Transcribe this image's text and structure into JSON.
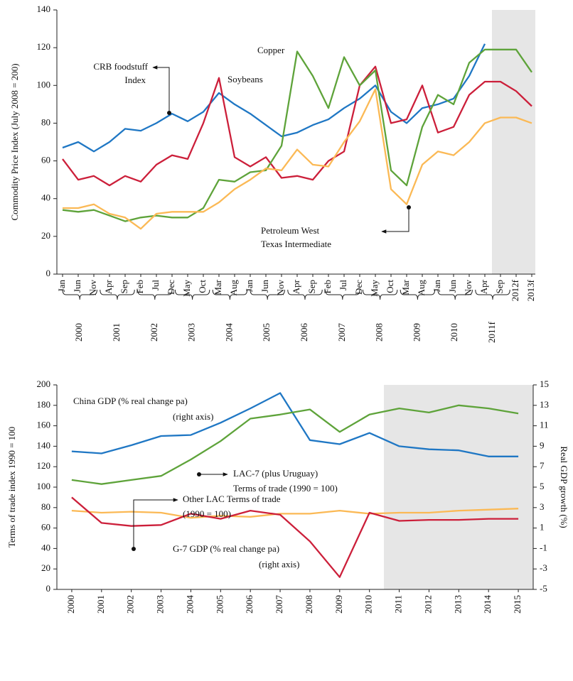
{
  "chart_data": [
    {
      "type": "line",
      "ylabel": "Commodity Price Index (July 2008 = 200)",
      "categories": [
        "Jan",
        "Jun",
        "Nov",
        "Apr",
        "Sep",
        "Feb",
        "Jul",
        "Dec",
        "May",
        "Oct",
        "Mar",
        "Aug",
        "Jan",
        "Jun",
        "Nov",
        "Apr",
        "Sep",
        "Feb",
        "Jul",
        "Dec",
        "May",
        "Oct",
        "Mar",
        "Aug",
        "Jan",
        "Jun",
        "Nov",
        "Apr",
        "Sep",
        "2012f",
        "2013f"
      ],
      "year_groups": [
        "2000",
        "2001",
        "2002",
        "2003",
        "2004",
        "2005",
        "2006",
        "2007",
        "2008",
        "2009",
        "2010",
        "2011f"
      ],
      "ylim": [
        0,
        140
      ],
      "yticks": [
        0,
        20,
        40,
        60,
        80,
        100,
        120,
        140
      ],
      "series": [
        {
          "name": "CRB foodstuff Index",
          "color": "#1f77c4",
          "values": [
            67,
            70,
            65,
            70,
            77,
            76,
            80,
            85,
            81,
            86,
            96,
            90,
            85,
            79,
            73,
            75,
            79,
            82,
            88,
            93,
            100,
            86,
            80,
            88,
            90,
            93,
            105,
            122,
            null,
            null,
            null
          ]
        },
        {
          "name": "Soybeans",
          "color": "#cc1f3a",
          "values": [
            61,
            50,
            52,
            47,
            52,
            49,
            58,
            63,
            61,
            80,
            104,
            62,
            57,
            62,
            51,
            52,
            50,
            60,
            65,
            100,
            110,
            80,
            82,
            100,
            75,
            78,
            95,
            102,
            102,
            97,
            89
          ]
        },
        {
          "name": "Copper",
          "color": "#5ea33a",
          "values": [
            34,
            33,
            34,
            31,
            28,
            30,
            31,
            30,
            30,
            35,
            50,
            49,
            54,
            55,
            68,
            118,
            105,
            88,
            115,
            100,
            108,
            55,
            47,
            78,
            95,
            90,
            112,
            119,
            119,
            119,
            107
          ]
        },
        {
          "name": "Petroleum West Texas Intermediate",
          "color": "#fbb955",
          "values": [
            35,
            35,
            37,
            32,
            30,
            24,
            32,
            33,
            33,
            33,
            38,
            45,
            50,
            56,
            55,
            66,
            58,
            57,
            70,
            81,
            98,
            45,
            37,
            58,
            65,
            63,
            70,
            80,
            83,
            83,
            80
          ]
        }
      ],
      "annotations": [
        [
          "Copper"
        ],
        [
          "Soybeans"
        ],
        [
          "CRB foodstuff",
          "Index"
        ],
        [
          "Petroleum West",
          "Texas Intermediate"
        ]
      ]
    },
    {
      "type": "line",
      "ylabel": "Terms of trade index 1990 = 100",
      "y2label": "Real GDP growth (%)",
      "categories": [
        "2000",
        "2001",
        "2002",
        "2003",
        "2004",
        "2005",
        "2006",
        "2007",
        "2008",
        "2009",
        "2010",
        "2011",
        "2012",
        "2013",
        "2014",
        "2015"
      ],
      "ylim": [
        0,
        200
      ],
      "yticks": [
        0,
        20,
        40,
        60,
        80,
        100,
        120,
        140,
        160,
        180,
        200
      ],
      "y2lim": [
        -5,
        15
      ],
      "y2ticks": [
        -5,
        -3,
        -1,
        1,
        3,
        5,
        7,
        9,
        11,
        13,
        15
      ],
      "series": [
        {
          "name": "China GDP (% real change pa)",
          "color": "#1f77c4",
          "axis": "y2",
          "values": [
            8.5,
            8.3,
            9.1,
            10.0,
            10.1,
            11.3,
            12.7,
            14.2,
            9.6,
            9.2,
            10.3,
            9.0,
            8.7,
            8.6,
            8.0,
            8.0
          ]
        },
        {
          "name": "LAC-7 (plus Uruguay) Terms of trade (1990 = 100)",
          "color": "#5ea33a",
          "values": [
            107,
            103,
            107,
            111,
            127,
            145,
            167,
            171,
            176,
            154,
            171,
            177,
            173,
            180,
            177,
            172
          ]
        },
        {
          "name": "Other LAC Terms of trade (1990 = 100)",
          "color": "#fbb955",
          "values": [
            77,
            75,
            76,
            75,
            70,
            72,
            71,
            74,
            74,
            77,
            74,
            75,
            75,
            77,
            78,
            79
          ]
        },
        {
          "name": "G-7 GDP (% real change pa)",
          "color": "#cc1f3a",
          "axis": "y2",
          "values": [
            4.0,
            1.5,
            1.2,
            1.3,
            2.4,
            1.9,
            2.7,
            2.3,
            -0.3,
            -3.8,
            2.5,
            1.7,
            1.8,
            1.8,
            1.9,
            1.9
          ]
        }
      ],
      "annotations": [
        [
          "China GDP (% real change pa)",
          "(right axis)"
        ],
        [
          "LAC-7 (plus Uruguay)",
          "Terms of trade (1990 = 100)"
        ],
        [
          "Other LAC Terms of trade",
          "(1990 = 100)"
        ],
        [
          "G-7 GDP (% real change pa)",
          "(right axis)"
        ]
      ]
    }
  ]
}
